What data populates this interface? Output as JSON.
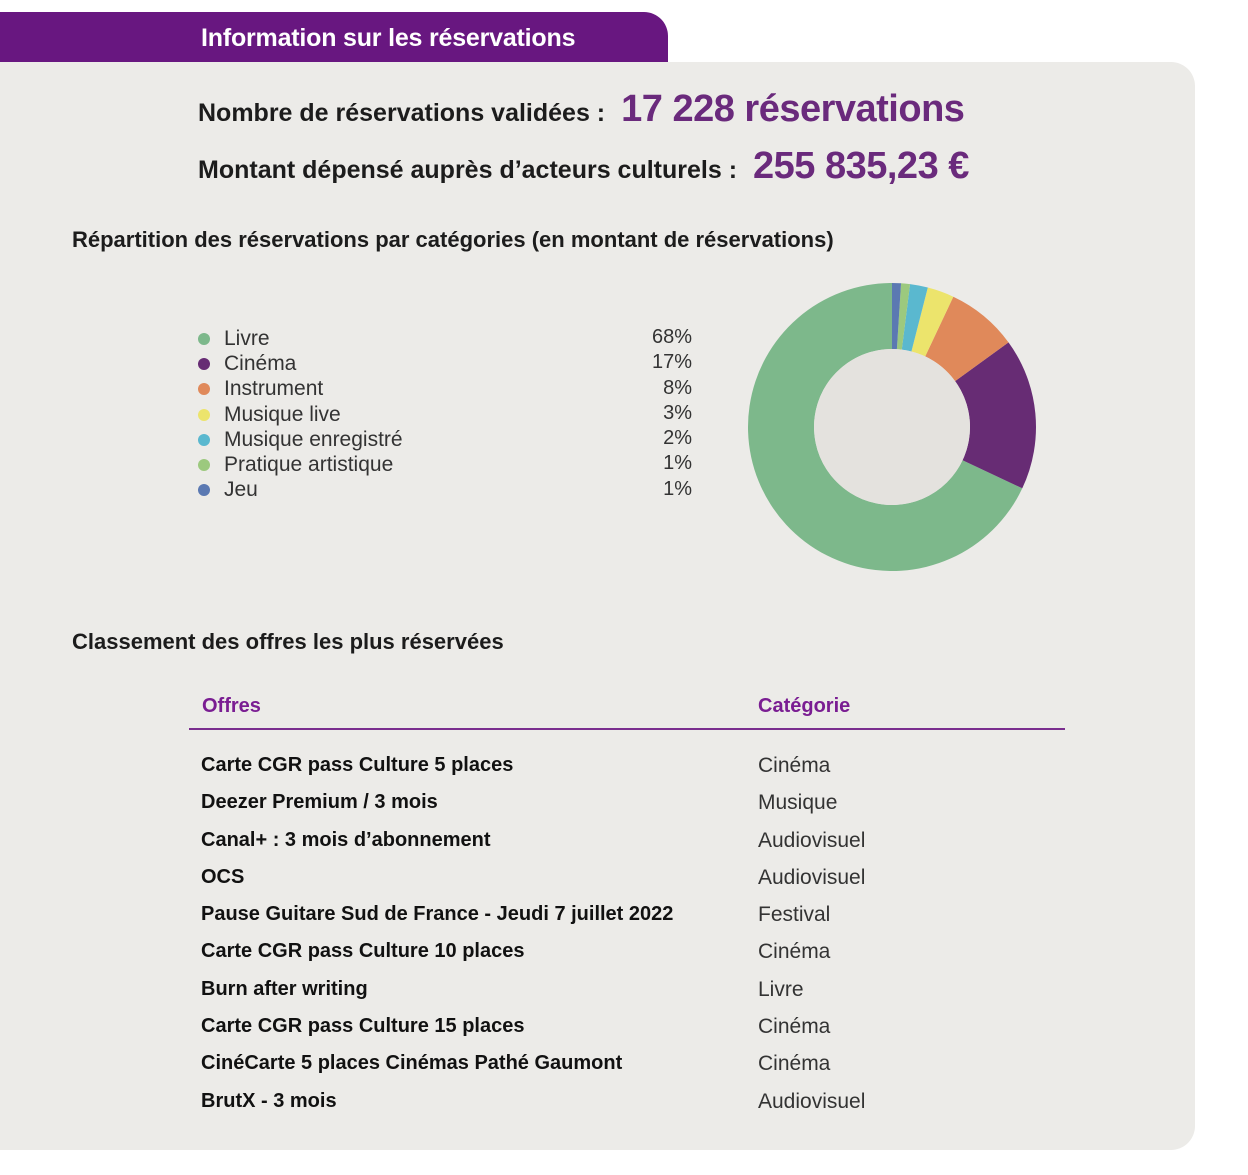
{
  "header": {
    "title": "Information sur les réservations"
  },
  "stats": {
    "reservations_label": "Nombre de réservations validées :",
    "reservations_value": "17 228 réservations",
    "amount_label": "Montant dépensé auprès d’acteurs culturels :",
    "amount_value": "255 835,23 €"
  },
  "chart_data": {
    "type": "pie",
    "title": "Répartition des réservations par catégories (en montant de réservations)",
    "donut": true,
    "legend_position": "left",
    "categories": [
      "Livre",
      "Cinéma",
      "Instrument",
      "Musique live",
      "Musique enregistré",
      "Pratique artistique",
      "Jeu"
    ],
    "values": [
      68,
      17,
      8,
      3,
      2,
      1,
      1
    ],
    "labels": [
      "68%",
      "17%",
      "8%",
      "3%",
      "2%",
      "1%",
      "1%"
    ],
    "colors": [
      "#7db88b",
      "#672c74",
      "#e0895a",
      "#ece46c",
      "#5ab8cf",
      "#9cc97e",
      "#5b79b2"
    ]
  },
  "ranking": {
    "title": "Classement des offres les plus réservées",
    "columns": [
      "Offres",
      "Catégorie"
    ],
    "rows": [
      {
        "offer": "Carte CGR pass Culture 5 places",
        "category": "Cinéma"
      },
      {
        "offer": "Deezer Premium / 3 mois",
        "category": "Musique"
      },
      {
        "offer": "Canal+ : 3 mois d’abonnement",
        "category": "Audiovisuel"
      },
      {
        "offer": "OCS",
        "category": "Audiovisuel"
      },
      {
        "offer": "Pause Guitare Sud de France - Jeudi 7 juillet 2022",
        "category": "Festival"
      },
      {
        "offer": "Carte CGR pass Culture 10 places",
        "category": "Cinéma"
      },
      {
        "offer": "Burn after writing",
        "category": "Livre"
      },
      {
        "offer": "Carte CGR pass Culture 15 places",
        "category": "Cinéma"
      },
      {
        "offer": "CinéCarte 5 places Cinémas Pathé Gaumont",
        "category": "Cinéma"
      },
      {
        "offer": "BrutX - 3 mois",
        "category": "Audiovisuel"
      }
    ]
  }
}
